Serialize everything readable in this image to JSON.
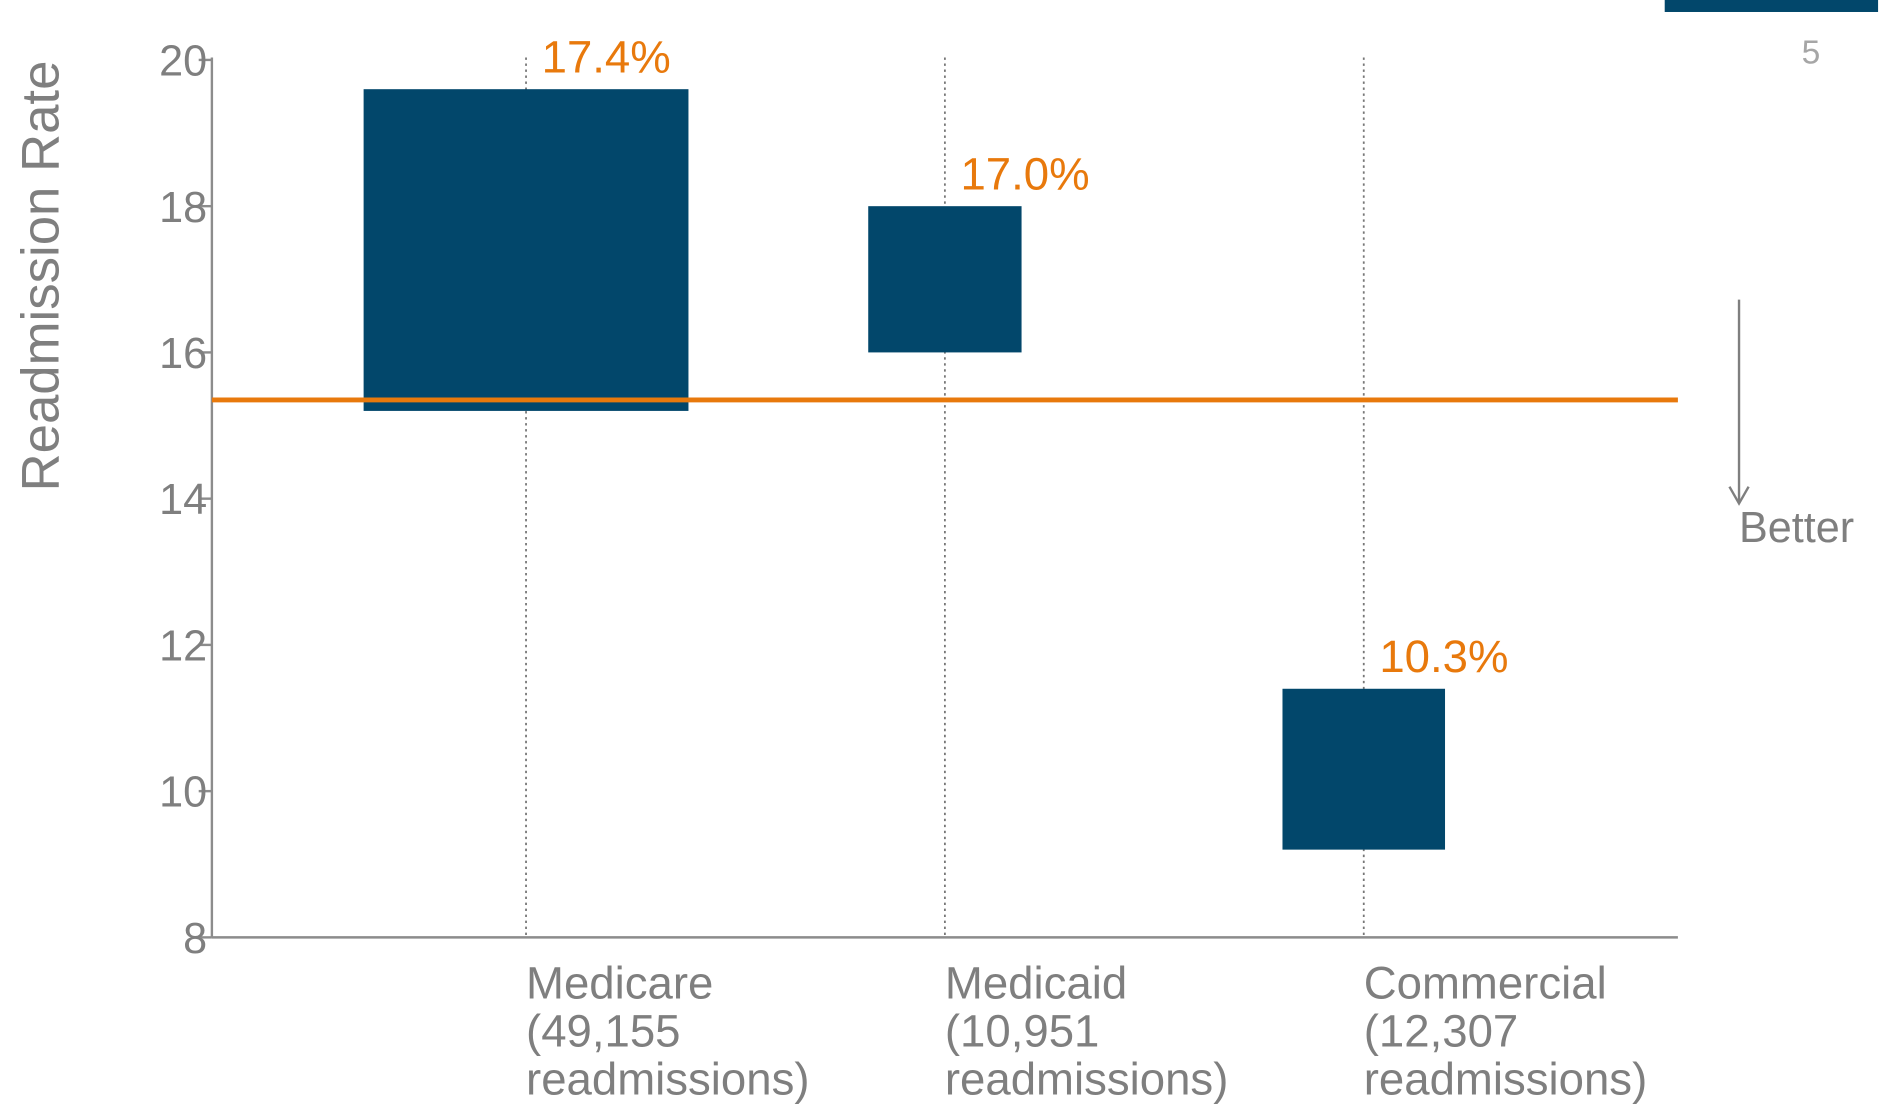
{
  "chart_data": {
    "type": "range_bar",
    "y_label": "Readmission Rate",
    "categories": [
      [
        "Medicare",
        "(49,155",
        "readmissions)"
      ],
      [
        "Medicaid",
        "(10,951",
        "readmissions)"
      ],
      [
        "Commercial",
        "(12,307",
        "readmissions)"
      ]
    ],
    "values": [
      17.4,
      17.0,
      10.3
    ],
    "value_labels": [
      "17.4%",
      "17.0%",
      "10.3%"
    ],
    "low": [
      15.2,
      16.0,
      9.2
    ],
    "high": [
      19.6,
      18.0,
      11.4
    ],
    "sizes": [
      49155,
      10951,
      12307
    ],
    "color": "#02476b",
    "label_color": "#e8790c",
    "reference": 15.35,
    "reference_color": "#e8790c",
    "ylim": [
      8,
      20
    ],
    "yticks": [
      8,
      10,
      12,
      14,
      16,
      18,
      20
    ],
    "annotation": "Better",
    "page_number": "5"
  }
}
